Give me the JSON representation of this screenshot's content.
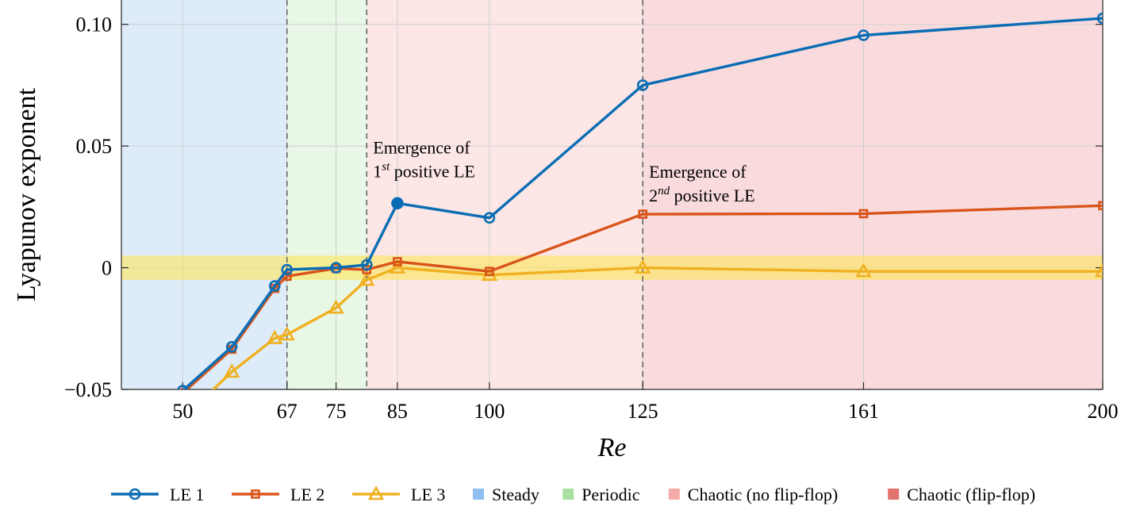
{
  "chart_data": {
    "type": "line",
    "xlabel": "Re",
    "ylabel": "Lyapunov exponent",
    "xlim": [
      40,
      200
    ],
    "ylim": [
      -0.05,
      0.11
    ],
    "xticks": [
      50,
      67,
      75,
      85,
      100,
      125,
      161,
      200
    ],
    "yticks": [
      -0.05,
      0,
      0.05,
      0.1
    ],
    "ytick_labels": [
      "−0.05",
      "0",
      "0.05",
      "0.10"
    ],
    "grid": true,
    "legend_placement": "bottom",
    "regions": [
      {
        "name": "Steady",
        "from": 40,
        "to": 67,
        "color": "#deebf9",
        "legend_color": "#8fbff0"
      },
      {
        "name": "Periodic",
        "from": 67,
        "to": 80,
        "color": "#e9f7e6",
        "legend_color": "#a8e0a0"
      },
      {
        "name": "Chaotic (no flip-flop)",
        "from": 80,
        "to": 125,
        "color": "#fce6e6",
        "legend_color": "#f4aaa6"
      },
      {
        "name": "Chaotic (flip-flop)",
        "from": 125,
        "to": 200,
        "color": "#f9dbde",
        "legend_color": "#e4736f"
      }
    ],
    "dashed_lines_x": [
      67,
      80,
      125
    ],
    "zero_band": {
      "from": -0.005,
      "to": 0.005,
      "color": "#fde65a"
    },
    "series": [
      {
        "name": "LE 1",
        "color": "#0a6db4",
        "marker": "circle",
        "x": [
          50,
          58,
          65,
          67,
          75,
          80,
          85,
          100,
          125,
          161,
          200
        ],
        "y": [
          -0.0505,
          -0.0325,
          -0.0075,
          -0.0008,
          0.0,
          0.0012,
          0.0265,
          0.0205,
          0.075,
          0.0955,
          0.1025
        ],
        "filled_point_index": 6
      },
      {
        "name": "LE 2",
        "color": "#d9541a",
        "marker": "square",
        "x": [
          50,
          58,
          65,
          67,
          75,
          80,
          85,
          100,
          125,
          161,
          200
        ],
        "y": [
          -0.0515,
          -0.0335,
          -0.0085,
          -0.0035,
          -0.0003,
          -0.0008,
          0.0025,
          -0.0015,
          0.022,
          0.0222,
          0.0255
        ]
      },
      {
        "name": "LE 3",
        "color": "#efb120",
        "marker": "triangle",
        "x": [
          50,
          58,
          65,
          67,
          75,
          80,
          85,
          100,
          125,
          161,
          200
        ],
        "y": [
          -0.062,
          -0.0428,
          -0.029,
          -0.0275,
          -0.0165,
          -0.005,
          0.0,
          -0.003,
          0.0,
          -0.0015,
          -0.0015
        ]
      }
    ],
    "annotations": [
      {
        "line1": "Emergence of",
        "line2_num": "1",
        "line2_sup": "st",
        "line2_rest": " positive LE",
        "x": 80,
        "y": 0.047
      },
      {
        "line1": "Emergence of",
        "line2_num": "2",
        "line2_sup": "nd",
        "line2_rest": " positive LE",
        "x": 125,
        "y": 0.037
      }
    ]
  }
}
